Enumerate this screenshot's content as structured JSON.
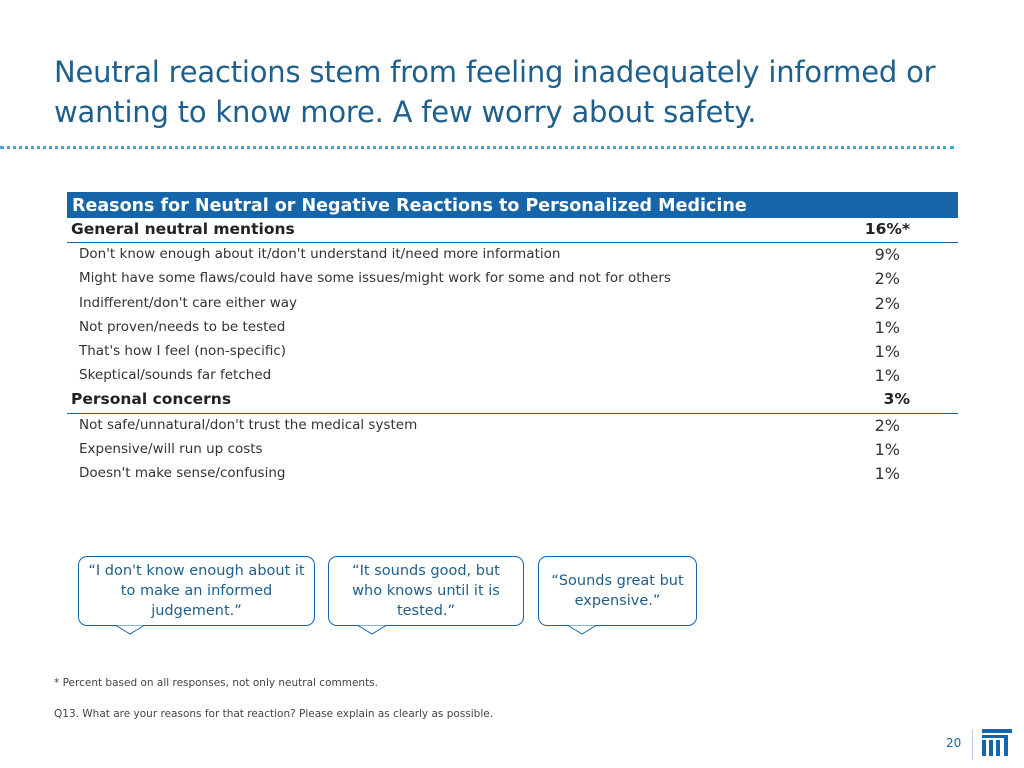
{
  "slide": {
    "title": "Neutral reactions stem from feeling inadequately informed or wanting to know more. A few worry about safety.",
    "page_number": "20"
  },
  "table": {
    "header": "Reasons for Neutral or Negative Reactions to Personalized Medicine",
    "rows": [
      {
        "type": "section",
        "label": "General neutral mentions",
        "value": "16%*"
      },
      {
        "type": "item",
        "label": "Don't know enough about it/don't understand it/need more information",
        "value": "9%"
      },
      {
        "type": "item",
        "label": "Might have some flaws/could have some issues/might work for some and not for others",
        "value": "2%"
      },
      {
        "type": "item",
        "label": "Indifferent/don't care either way",
        "value": "2%"
      },
      {
        "type": "item",
        "label": "Not proven/needs to be tested",
        "value": "1%"
      },
      {
        "type": "item",
        "label": "That's how I feel (non-specific)",
        "value": "1%"
      },
      {
        "type": "item",
        "label": "Skeptical/sounds far fetched",
        "value": "1%"
      },
      {
        "type": "section",
        "label": "Personal concerns",
        "value": "3%"
      },
      {
        "type": "item",
        "label": "Not safe/unnatural/don't trust the medical system",
        "value": "2%"
      },
      {
        "type": "item",
        "label": "Expensive/will run up costs",
        "value": "1%"
      },
      {
        "type": "item",
        "label": "Doesn't make sense/confusing",
        "value": "1%"
      }
    ]
  },
  "quotes": [
    "“I don't know enough about it to make an informed judgement.”",
    "“It sounds good, but who knows until it is tested.”",
    "“Sounds great but expensive.”"
  ],
  "footnotes": {
    "asterisk_note": "* Percent based on all responses, not only neutral comments.",
    "question": "Q13. What are your reasons for that reaction? Please explain as clearly as possible."
  },
  "colors": {
    "title": "#1f5f8b",
    "header_bg": "#1565a8",
    "rule": "#3aa7d6"
  },
  "icons": {
    "logo": "company-logo-icon"
  }
}
